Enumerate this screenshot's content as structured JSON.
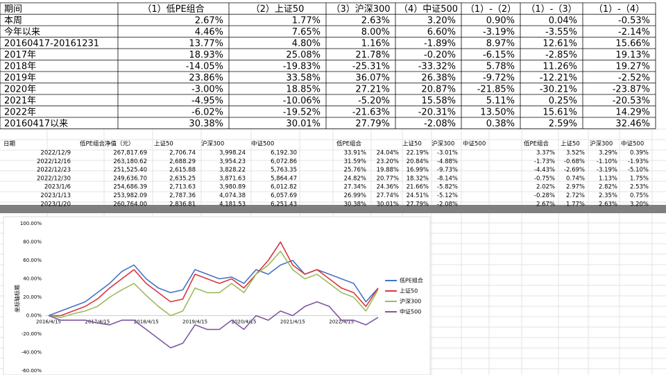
{
  "summary_table": {
    "header": [
      "期间",
      "（1）低PE组合",
      "（2）上证50",
      "（3）沪深300",
      "（4）中证500",
      "（1）-（2）",
      "（1）-（3）",
      "（1）-（4）"
    ],
    "rows": [
      [
        "本周",
        "2.67%",
        "1.77%",
        "2.63%",
        "3.20%",
        "0.90%",
        "0.04%",
        "-0.53%"
      ],
      [
        "今年以来",
        "4.46%",
        "7.65%",
        "8.00%",
        "6.60%",
        "-3.19%",
        "-3.55%",
        "-2.14%"
      ],
      [
        "20160417-20161231",
        "13.77%",
        "4.80%",
        "1.16%",
        "-1.89%",
        "8.97%",
        "12.61%",
        "15.66%"
      ],
      [
        "2017年",
        "18.93%",
        "25.08%",
        "21.78%",
        "-0.20%",
        "-6.15%",
        "-2.85%",
        "19.13%"
      ],
      [
        "2018年",
        "-14.05%",
        "-19.83%",
        "-25.31%",
        "-33.32%",
        "5.78%",
        "11.26%",
        "19.27%"
      ],
      [
        "2019年",
        "23.86%",
        "33.58%",
        "36.07%",
        "26.38%",
        "-9.72%",
        "-12.21%",
        "-2.52%"
      ],
      [
        "2020年",
        "-3.00%",
        "18.85%",
        "27.21%",
        "20.87%",
        "-21.85%",
        "-30.21%",
        "-23.87%"
      ],
      [
        "2021年",
        "-4.95%",
        "-10.06%",
        "-5.20%",
        "15.58%",
        "5.11%",
        "0.25%",
        "-20.53%"
      ],
      [
        "2022年",
        "-6.02%",
        "-19.52%",
        "-21.63%",
        "-20.31%",
        "13.50%",
        "15.61%",
        "14.29%"
      ],
      [
        "20160417以来",
        "30.38%",
        "30.01%",
        "27.79%",
        "-2.08%",
        "0.38%",
        "2.59%",
        "32.46%"
      ]
    ]
  },
  "weekly_table": {
    "header": [
      "日期",
      "低PE组合净值（元）",
      "上证50",
      "沪深300",
      "中证500",
      "低PE组合",
      "上证50",
      "沪深300",
      "中证500",
      "低PE组合",
      "上证50",
      "沪深300",
      "中证500"
    ],
    "rows": [
      [
        "2022/12/9",
        "267,817.69",
        "2,706.74",
        "3,998.24",
        "6,192.30",
        "33.91%",
        "24.04%",
        "22.19%",
        "-3.01%",
        "3.37%",
        "3.52%",
        "3.29%",
        "0.39%"
      ],
      [
        "2022/12/16",
        "263,180.62",
        "2,688.29",
        "3,954.23",
        "6,072.86",
        "31.59%",
        "23.20%",
        "20.84%",
        "-4.88%",
        "-1.73%",
        "-0.68%",
        "-1.10%",
        "-1.93%"
      ],
      [
        "2022/12/23",
        "251,525.40",
        "2,615.88",
        "3,828.22",
        "5,763.35",
        "25.76%",
        "19.88%",
        "16.99%",
        "-9.73%",
        "-4.43%",
        "-2.69%",
        "-3.19%",
        "-5.10%"
      ],
      [
        "2022/12/30",
        "249,636.70",
        "2,635.25",
        "3,871.63",
        "5,864.47",
        "24.82%",
        "20.77%",
        "18.32%",
        "-8.14%",
        "-0.75%",
        "0.74%",
        "1.13%",
        "1.75%"
      ],
      [
        "2023/1/6",
        "254,686.39",
        "2,713.63",
        "3,980.89",
        "6,012.82",
        "27.34%",
        "24.36%",
        "21.66%",
        "-5.82%",
        "2.02%",
        "2.97%",
        "2.82%",
        "2.53%"
      ],
      [
        "2023/1/13",
        "253,982.09",
        "2,787.36",
        "4,074.38",
        "6,057.69",
        "26.99%",
        "27.74%",
        "24.51%",
        "-5.12%",
        "-0.28%",
        "2.72%",
        "2.35%",
        "0.75%"
      ],
      [
        "2023/1/20",
        "260,764.00",
        "2,836.81",
        "4,181.53",
        "6,251.43",
        "30.38%",
        "30.01%",
        "27.79%",
        "-2.08%",
        "2.67%",
        "1.77%",
        "2.63%",
        "3.20%"
      ]
    ]
  },
  "chart_data": {
    "type": "line",
    "y_axis_title": "坐标轴标题",
    "categories": [
      "2016/4/15",
      null,
      null,
      null,
      "2017/4/15",
      null,
      null,
      null,
      "2018/4/15",
      null,
      null,
      null,
      "2019/4/15",
      null,
      null,
      null,
      "2020/4/15",
      null,
      null,
      null,
      "2021/4/15",
      null,
      null,
      null,
      "2022/4/15",
      null,
      null,
      null
    ],
    "series": [
      {
        "name": "低PE组合",
        "color": "#4472c4",
        "values": [
          0,
          5,
          10,
          15,
          25,
          35,
          48,
          55,
          40,
          30,
          25,
          28,
          50,
          45,
          40,
          42,
          35,
          50,
          45,
          55,
          60,
          45,
          50,
          45,
          40,
          35,
          15,
          30
        ]
      },
      {
        "name": "上证50",
        "color": "#d9363e",
        "values": [
          0,
          0,
          5,
          10,
          18,
          30,
          40,
          50,
          35,
          25,
          15,
          18,
          45,
          40,
          35,
          40,
          30,
          45,
          60,
          80,
          55,
          45,
          50,
          40,
          30,
          25,
          10,
          30
        ]
      },
      {
        "name": "沪深300",
        "color": "#9bbb59",
        "values": [
          0,
          -2,
          2,
          5,
          10,
          20,
          28,
          35,
          22,
          10,
          0,
          5,
          30,
          25,
          25,
          35,
          25,
          45,
          55,
          70,
          50,
          40,
          45,
          35,
          25,
          20,
          5,
          28
        ]
      },
      {
        "name": "中证500",
        "color": "#7e57a0",
        "values": [
          0,
          -5,
          -5,
          -5,
          -8,
          -10,
          -5,
          -5,
          -15,
          -25,
          -35,
          -30,
          -10,
          -15,
          -15,
          -5,
          -15,
          0,
          -5,
          5,
          0,
          10,
          15,
          10,
          -5,
          -5,
          -10,
          -2
        ]
      }
    ],
    "ylim": [
      -60,
      100
    ],
    "yticks": [
      {
        "value": -60,
        "label": "-60.00%"
      },
      {
        "value": -40,
        "label": "-40.00%"
      },
      {
        "value": -20,
        "label": "-20.00%"
      },
      {
        "value": 0,
        "label": "0.00%"
      },
      {
        "value": 20,
        "label": "20.00%"
      },
      {
        "value": 40,
        "label": "40.00%"
      },
      {
        "value": 60,
        "label": "60.00%"
      },
      {
        "value": 80,
        "label": "80.00%"
      },
      {
        "value": 100,
        "label": "100.00%"
      }
    ],
    "legend": "right"
  }
}
